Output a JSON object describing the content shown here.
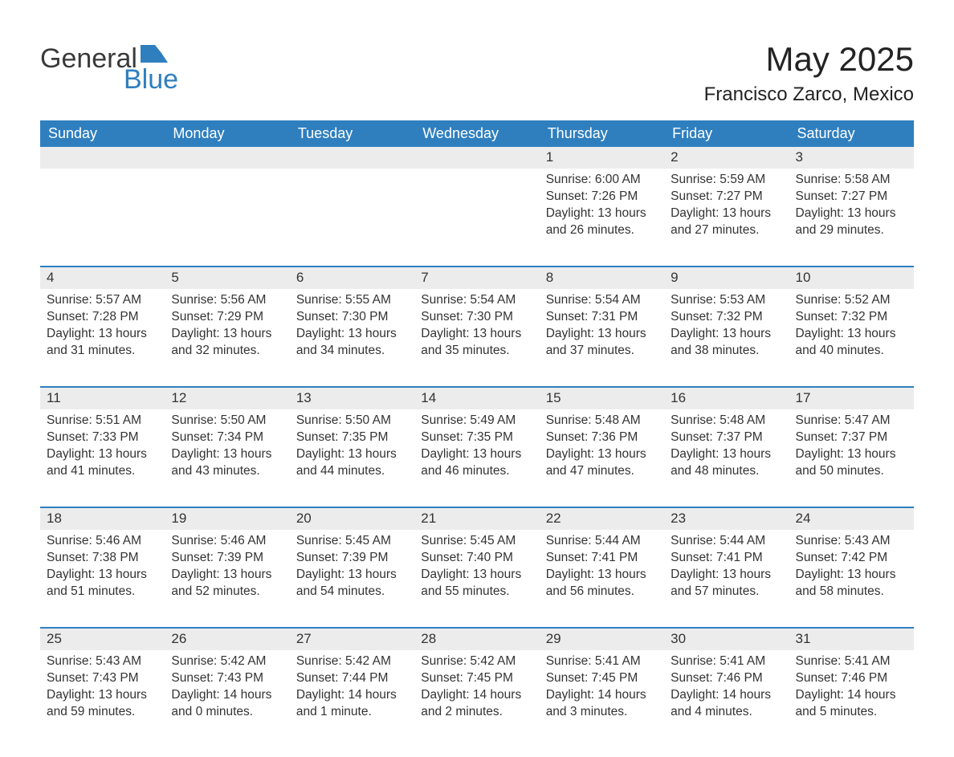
{
  "brand": {
    "word1": "General",
    "word2": "Blue",
    "text_color": "#3a3a3a",
    "accent_color": "#2f7fbf"
  },
  "header": {
    "title": "May 2025",
    "subtitle": "Francisco Zarco, Mexico"
  },
  "style": {
    "header_bg": "#2f7fbf",
    "header_text": "#ffffff",
    "daynum_bg": "#ececec",
    "row_border": "#2f7fbf",
    "body_text": "#333333",
    "page_bg": "#ffffff",
    "title_fontsize": 42,
    "subtitle_fontsize": 24,
    "weekday_fontsize": 18,
    "cell_fontsize": 15.5
  },
  "weekdays": [
    "Sunday",
    "Monday",
    "Tuesday",
    "Wednesday",
    "Thursday",
    "Friday",
    "Saturday"
  ],
  "weeks": [
    [
      {
        "empty": true
      },
      {
        "empty": true
      },
      {
        "empty": true
      },
      {
        "empty": true
      },
      {
        "day": "1",
        "sunrise": "Sunrise: 6:00 AM",
        "sunset": "Sunset: 7:26 PM",
        "daylight": "Daylight: 13 hours and 26 minutes."
      },
      {
        "day": "2",
        "sunrise": "Sunrise: 5:59 AM",
        "sunset": "Sunset: 7:27 PM",
        "daylight": "Daylight: 13 hours and 27 minutes."
      },
      {
        "day": "3",
        "sunrise": "Sunrise: 5:58 AM",
        "sunset": "Sunset: 7:27 PM",
        "daylight": "Daylight: 13 hours and 29 minutes."
      }
    ],
    [
      {
        "day": "4",
        "sunrise": "Sunrise: 5:57 AM",
        "sunset": "Sunset: 7:28 PM",
        "daylight": "Daylight: 13 hours and 31 minutes."
      },
      {
        "day": "5",
        "sunrise": "Sunrise: 5:56 AM",
        "sunset": "Sunset: 7:29 PM",
        "daylight": "Daylight: 13 hours and 32 minutes."
      },
      {
        "day": "6",
        "sunrise": "Sunrise: 5:55 AM",
        "sunset": "Sunset: 7:30 PM",
        "daylight": "Daylight: 13 hours and 34 minutes."
      },
      {
        "day": "7",
        "sunrise": "Sunrise: 5:54 AM",
        "sunset": "Sunset: 7:30 PM",
        "daylight": "Daylight: 13 hours and 35 minutes."
      },
      {
        "day": "8",
        "sunrise": "Sunrise: 5:54 AM",
        "sunset": "Sunset: 7:31 PM",
        "daylight": "Daylight: 13 hours and 37 minutes."
      },
      {
        "day": "9",
        "sunrise": "Sunrise: 5:53 AM",
        "sunset": "Sunset: 7:32 PM",
        "daylight": "Daylight: 13 hours and 38 minutes."
      },
      {
        "day": "10",
        "sunrise": "Sunrise: 5:52 AM",
        "sunset": "Sunset: 7:32 PM",
        "daylight": "Daylight: 13 hours and 40 minutes."
      }
    ],
    [
      {
        "day": "11",
        "sunrise": "Sunrise: 5:51 AM",
        "sunset": "Sunset: 7:33 PM",
        "daylight": "Daylight: 13 hours and 41 minutes."
      },
      {
        "day": "12",
        "sunrise": "Sunrise: 5:50 AM",
        "sunset": "Sunset: 7:34 PM",
        "daylight": "Daylight: 13 hours and 43 minutes."
      },
      {
        "day": "13",
        "sunrise": "Sunrise: 5:50 AM",
        "sunset": "Sunset: 7:35 PM",
        "daylight": "Daylight: 13 hours and 44 minutes."
      },
      {
        "day": "14",
        "sunrise": "Sunrise: 5:49 AM",
        "sunset": "Sunset: 7:35 PM",
        "daylight": "Daylight: 13 hours and 46 minutes."
      },
      {
        "day": "15",
        "sunrise": "Sunrise: 5:48 AM",
        "sunset": "Sunset: 7:36 PM",
        "daylight": "Daylight: 13 hours and 47 minutes."
      },
      {
        "day": "16",
        "sunrise": "Sunrise: 5:48 AM",
        "sunset": "Sunset: 7:37 PM",
        "daylight": "Daylight: 13 hours and 48 minutes."
      },
      {
        "day": "17",
        "sunrise": "Sunrise: 5:47 AM",
        "sunset": "Sunset: 7:37 PM",
        "daylight": "Daylight: 13 hours and 50 minutes."
      }
    ],
    [
      {
        "day": "18",
        "sunrise": "Sunrise: 5:46 AM",
        "sunset": "Sunset: 7:38 PM",
        "daylight": "Daylight: 13 hours and 51 minutes."
      },
      {
        "day": "19",
        "sunrise": "Sunrise: 5:46 AM",
        "sunset": "Sunset: 7:39 PM",
        "daylight": "Daylight: 13 hours and 52 minutes."
      },
      {
        "day": "20",
        "sunrise": "Sunrise: 5:45 AM",
        "sunset": "Sunset: 7:39 PM",
        "daylight": "Daylight: 13 hours and 54 minutes."
      },
      {
        "day": "21",
        "sunrise": "Sunrise: 5:45 AM",
        "sunset": "Sunset: 7:40 PM",
        "daylight": "Daylight: 13 hours and 55 minutes."
      },
      {
        "day": "22",
        "sunrise": "Sunrise: 5:44 AM",
        "sunset": "Sunset: 7:41 PM",
        "daylight": "Daylight: 13 hours and 56 minutes."
      },
      {
        "day": "23",
        "sunrise": "Sunrise: 5:44 AM",
        "sunset": "Sunset: 7:41 PM",
        "daylight": "Daylight: 13 hours and 57 minutes."
      },
      {
        "day": "24",
        "sunrise": "Sunrise: 5:43 AM",
        "sunset": "Sunset: 7:42 PM",
        "daylight": "Daylight: 13 hours and 58 minutes."
      }
    ],
    [
      {
        "day": "25",
        "sunrise": "Sunrise: 5:43 AM",
        "sunset": "Sunset: 7:43 PM",
        "daylight": "Daylight: 13 hours and 59 minutes."
      },
      {
        "day": "26",
        "sunrise": "Sunrise: 5:42 AM",
        "sunset": "Sunset: 7:43 PM",
        "daylight": "Daylight: 14 hours and 0 minutes."
      },
      {
        "day": "27",
        "sunrise": "Sunrise: 5:42 AM",
        "sunset": "Sunset: 7:44 PM",
        "daylight": "Daylight: 14 hours and 1 minute."
      },
      {
        "day": "28",
        "sunrise": "Sunrise: 5:42 AM",
        "sunset": "Sunset: 7:45 PM",
        "daylight": "Daylight: 14 hours and 2 minutes."
      },
      {
        "day": "29",
        "sunrise": "Sunrise: 5:41 AM",
        "sunset": "Sunset: 7:45 PM",
        "daylight": "Daylight: 14 hours and 3 minutes."
      },
      {
        "day": "30",
        "sunrise": "Sunrise: 5:41 AM",
        "sunset": "Sunset: 7:46 PM",
        "daylight": "Daylight: 14 hours and 4 minutes."
      },
      {
        "day": "31",
        "sunrise": "Sunrise: 5:41 AM",
        "sunset": "Sunset: 7:46 PM",
        "daylight": "Daylight: 14 hours and 5 minutes."
      }
    ]
  ]
}
